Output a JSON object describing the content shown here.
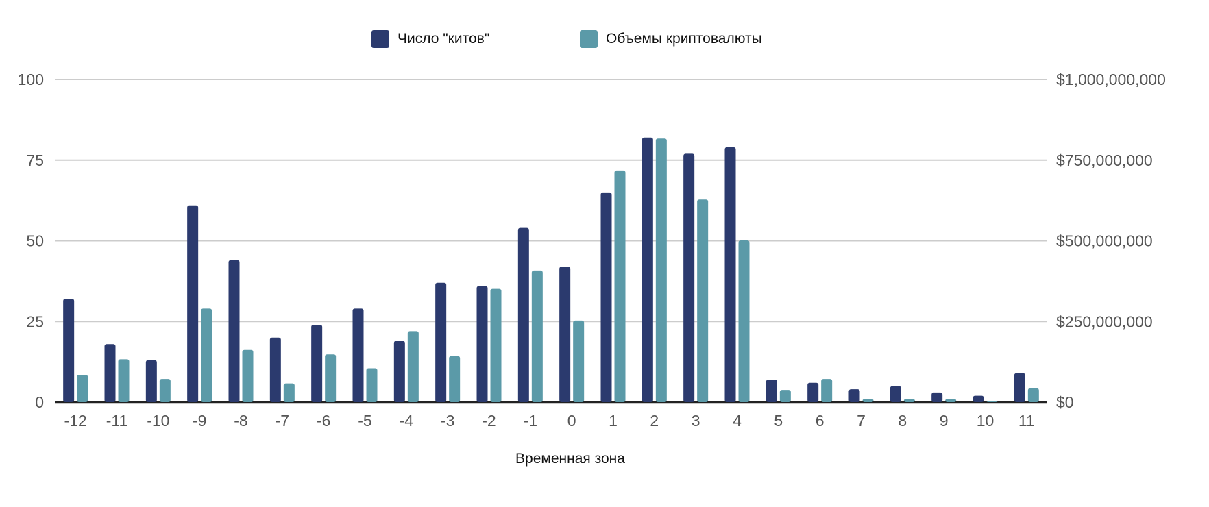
{
  "chart_data": {
    "type": "bar",
    "title": "",
    "xlabel": "Временная зона",
    "ylabel": "",
    "y2label": "",
    "categories": [
      "-12",
      "-11",
      "-10",
      "-9",
      "-8",
      "-7",
      "-6",
      "-5",
      "-4",
      "-3",
      "-2",
      "-1",
      "0",
      "1",
      "2",
      "3",
      "4",
      "5",
      "6",
      "7",
      "8",
      "9",
      "10",
      "11"
    ],
    "series": [
      {
        "name": "Число \"китов\"",
        "axis": "left",
        "color": "#2b3a6e",
        "values": [
          32,
          18,
          13,
          61,
          44,
          20,
          24,
          29,
          19,
          37,
          36,
          54,
          42,
          65,
          82,
          77,
          79,
          7,
          6,
          4,
          5,
          3,
          2,
          9
        ]
      },
      {
        "name": "Объемы криптовалюты",
        "axis": "right",
        "color": "#5b9aa8",
        "values": [
          85000000,
          133000000,
          72000000,
          290000000,
          162000000,
          58000000,
          148000000,
          105000000,
          220000000,
          143000000,
          351000000,
          408000000,
          253000000,
          718000000,
          817000000,
          628000000,
          501000000,
          38000000,
          72000000,
          10000000,
          10000000,
          10000000,
          2000000,
          43000000
        ]
      }
    ],
    "ylim": [
      0,
      100
    ],
    "y2lim": [
      0,
      1000000000
    ],
    "yticks": [
      "0",
      "25",
      "50",
      "75",
      "100"
    ],
    "y2ticks": [
      "$0",
      "$250,000,000",
      "$500,000,000",
      "$750,000,000",
      "$1,000,000,000"
    ],
    "grid": true,
    "legend_position": "top-center",
    "colors": {
      "gridline": "#cccccc",
      "baseline": "#222222",
      "tick_text": "#555555"
    }
  }
}
